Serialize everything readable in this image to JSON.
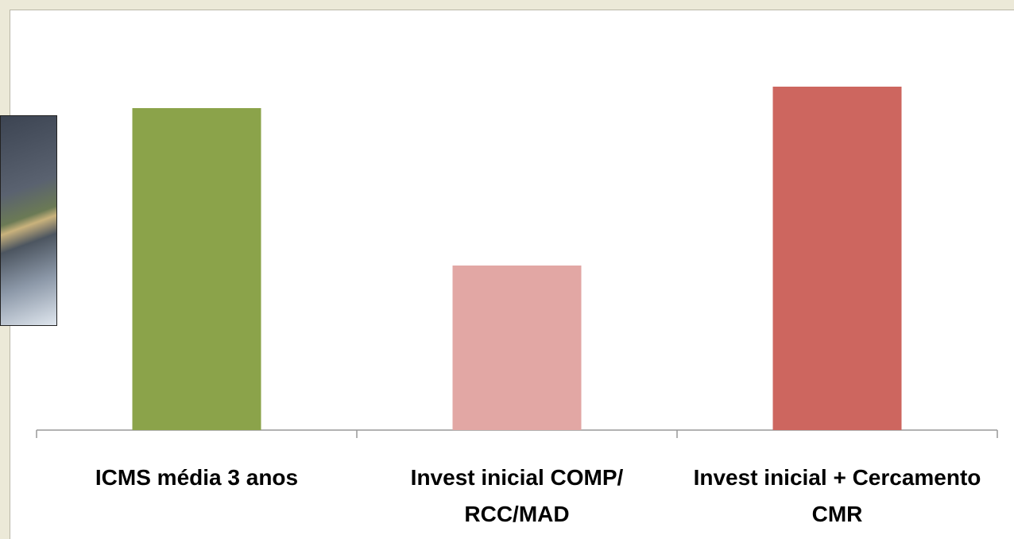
{
  "chart_data": {
    "type": "bar",
    "categories": [
      "ICMS média 3 anos",
      "Invest inicial COMP/ RCC/MAD",
      "Invest inicial + Cercamento CMR"
    ],
    "values": [
      90,
      46,
      96
    ],
    "colors": [
      "#8ba34a",
      "#e2a7a4",
      "#cd665f"
    ],
    "ylim": [
      0,
      100
    ]
  }
}
